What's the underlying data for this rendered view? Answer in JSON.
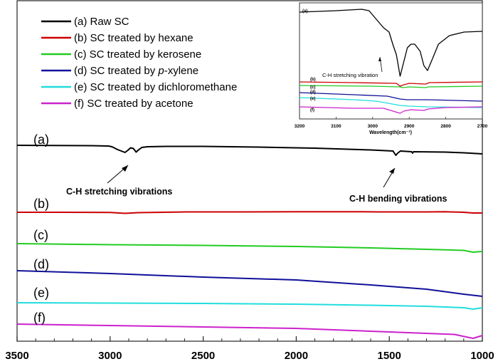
{
  "chart_data": [
    {
      "type": "line",
      "title": "",
      "xlabel": "",
      "ylabel": "",
      "xlim": [
        3500,
        1000
      ],
      "x_ticks": [
        "3500",
        "3000",
        "2500",
        "2000",
        "1500",
        "1000"
      ],
      "legend": [
        {
          "text": "(a) Raw SC",
          "color": "#000000"
        },
        {
          "text": "(b) SC treated by hexane",
          "color": "#cc0000"
        },
        {
          "text": "(c) SC treated by kerosene",
          "color": "#22cc22"
        },
        {
          "text": "(d) SC treated by ",
          "italic": "p",
          "rest": "-xylene",
          "color": "#10109a"
        },
        {
          "text": "(e) SC treated by dichloromethane",
          "color": "#22dddd"
        },
        {
          "text": "(f)  SC treated by acetone",
          "color": "#cc22cc"
        }
      ],
      "series": [
        {
          "name": "(a)",
          "color": "#000000",
          "points": [
            [
              3500,
              0.0
            ],
            [
              3300,
              0.2
            ],
            [
              3100,
              0.5
            ],
            [
              3010,
              1.0
            ],
            [
              2990,
              2.0
            ],
            [
              2960,
              6.0
            ],
            [
              2930,
              9.0
            ],
            [
              2920,
              10.0
            ],
            [
              2905,
              7.0
            ],
            [
              2890,
              3.5
            ],
            [
              2875,
              4.5
            ],
            [
              2860,
              9.5
            ],
            [
              2850,
              7.0
            ],
            [
              2830,
              3.0
            ],
            [
              2800,
              2.0
            ],
            [
              2700,
              1.5
            ],
            [
              2500,
              1.5
            ],
            [
              2200,
              2.5
            ],
            [
              1900,
              4.0
            ],
            [
              1600,
              6.5
            ],
            [
              1480,
              8.0
            ],
            [
              1465,
              14.0
            ],
            [
              1455,
              11.0
            ],
            [
              1440,
              8.0
            ],
            [
              1380,
              9.0
            ],
            [
              1375,
              11.0
            ],
            [
              1370,
              9.0
            ],
            [
              1200,
              9.5
            ],
            [
              1100,
              10.5
            ],
            [
              1000,
              12.0
            ]
          ]
        },
        {
          "name": "(b)",
          "color": "#cc0000",
          "points": [
            [
              3500,
              0.0
            ],
            [
              3300,
              0.0
            ],
            [
              3000,
              0.2
            ],
            [
              2920,
              1.5
            ],
            [
              2850,
              0.5
            ],
            [
              2600,
              -0.5
            ],
            [
              2300,
              -0.5
            ],
            [
              2000,
              -0.7
            ],
            [
              1700,
              -0.8
            ],
            [
              1550,
              -0.5
            ],
            [
              1300,
              -0.5
            ],
            [
              1200,
              -0.7
            ],
            [
              1100,
              0.0
            ],
            [
              1050,
              1.0
            ],
            [
              1000,
              1.0
            ]
          ]
        },
        {
          "name": "(c)",
          "color": "#22cc22",
          "points": [
            [
              3500,
              0.0
            ],
            [
              3000,
              1.5
            ],
            [
              2500,
              2.5
            ],
            [
              2000,
              4.0
            ],
            [
              1600,
              6.0
            ],
            [
              1300,
              8.0
            ],
            [
              1100,
              9.5
            ],
            [
              1050,
              12.0
            ],
            [
              1000,
              11.0
            ]
          ]
        },
        {
          "name": "(d)",
          "color": "#10109a",
          "points": [
            [
              3500,
              0.0
            ],
            [
              3000,
              4.0
            ],
            [
              2500,
              9.0
            ],
            [
              2000,
              13.0
            ],
            [
              1600,
              20.0
            ],
            [
              1300,
              26.0
            ],
            [
              1100,
              33.0
            ],
            [
              1000,
              36.0
            ]
          ]
        },
        {
          "name": "(e)",
          "color": "#22dddd",
          "points": [
            [
              3500,
              0.0
            ],
            [
              3000,
              0.5
            ],
            [
              2500,
              1.0
            ],
            [
              2000,
              2.0
            ],
            [
              1600,
              3.5
            ],
            [
              1300,
              5.0
            ],
            [
              1100,
              7.0
            ],
            [
              1050,
              9.0
            ],
            [
              1000,
              7.0
            ]
          ]
        },
        {
          "name": "(f)",
          "color": "#cc22cc",
          "points": [
            [
              3500,
              0.0
            ],
            [
              3000,
              2.0
            ],
            [
              2500,
              4.0
            ],
            [
              2000,
              6.0
            ],
            [
              1600,
              10.0
            ],
            [
              1300,
              13.0
            ],
            [
              1150,
              14.5
            ],
            [
              1050,
              20.0
            ],
            [
              1000,
              16.0
            ]
          ]
        }
      ],
      "curve_labels": [
        "(a)",
        "(b)",
        "(c)",
        "(d)",
        "(e)",
        "(f)"
      ],
      "annotations": [
        "C-H stretching vibrations",
        "C-H bending vibrations"
      ]
    },
    {
      "type": "line",
      "title": "inset",
      "xlabel": "Wavelength(cm⁻¹)",
      "ylabel": "",
      "xlim": [
        3200,
        2700
      ],
      "x_ticks": [
        "3200",
        "3100",
        "3000",
        "2900",
        "2800",
        "2700"
      ],
      "annotations": [
        "C-H stretching vibration"
      ],
      "curve_labels": [
        "(a)",
        "(b)",
        "(c)",
        "(d)",
        "(e)",
        "(f)"
      ],
      "series": [
        {
          "name": "(a)",
          "color": "#000000",
          "points": [
            [
              3200,
              0
            ],
            [
              3100,
              -2
            ],
            [
              3030,
              -4
            ],
            [
              3010,
              -2
            ],
            [
              2990,
              10
            ],
            [
              2970,
              22
            ],
            [
              2955,
              28
            ],
            [
              2945,
              45
            ],
            [
              2935,
              60
            ],
            [
              2925,
              90
            ],
            [
              2915,
              70
            ],
            [
              2905,
              50
            ],
            [
              2895,
              45
            ],
            [
              2885,
              45
            ],
            [
              2870,
              55
            ],
            [
              2860,
              75
            ],
            [
              2850,
              82
            ],
            [
              2840,
              70
            ],
            [
              2820,
              45
            ],
            [
              2790,
              33
            ],
            [
              2750,
              28
            ],
            [
              2700,
              27
            ]
          ]
        },
        {
          "name": "(b)",
          "color": "#cc0000",
          "points": [
            [
              3200,
              0
            ],
            [
              3050,
              1
            ],
            [
              2935,
              2
            ],
            [
              2925,
              6
            ],
            [
              2915,
              4
            ],
            [
              2900,
              2
            ],
            [
              2855,
              3
            ],
            [
              2845,
              1
            ],
            [
              2700,
              0
            ]
          ]
        },
        {
          "name": "(c)",
          "color": "#22cc22",
          "points": [
            [
              3200,
              0
            ],
            [
              3000,
              1
            ],
            [
              2925,
              2
            ],
            [
              2918,
              3
            ],
            [
              2900,
              2
            ],
            [
              2855,
              3
            ],
            [
              2848,
              2
            ],
            [
              2700,
              1
            ]
          ]
        },
        {
          "name": "(d)",
          "color": "#10109a",
          "points": [
            [
              3200,
              0
            ],
            [
              3050,
              3
            ],
            [
              2960,
              5
            ],
            [
              2925,
              9
            ],
            [
              2905,
              10
            ],
            [
              2850,
              10
            ],
            [
              2700,
              12
            ]
          ]
        },
        {
          "name": "(e)",
          "color": "#22dddd",
          "points": [
            [
              3200,
              0
            ],
            [
              3050,
              3
            ],
            [
              2990,
              5
            ],
            [
              2925,
              11
            ],
            [
              2900,
              12
            ],
            [
              2850,
              13
            ],
            [
              2700,
              14
            ]
          ]
        },
        {
          "name": "(f)",
          "color": "#cc22cc",
          "points": [
            [
              3200,
              0
            ],
            [
              3050,
              2
            ],
            [
              2970,
              2
            ],
            [
              2925,
              9
            ],
            [
              2915,
              6
            ],
            [
              2895,
              4
            ],
            [
              2860,
              5
            ],
            [
              2848,
              3
            ],
            [
              2800,
              1
            ],
            [
              2700,
              0
            ]
          ]
        }
      ]
    }
  ]
}
